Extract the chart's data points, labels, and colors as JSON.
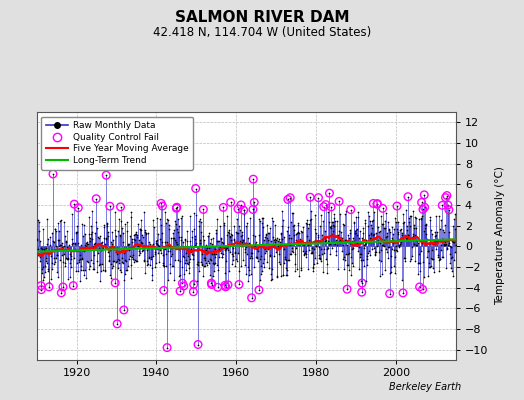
{
  "title": "SALMON RIVER DAM",
  "subtitle": "42.418 N, 114.704 W (United States)",
  "ylabel": "Temperature Anomaly (°C)",
  "credit": "Berkeley Earth",
  "xlim": [
    1910,
    2015
  ],
  "ylim": [
    -11,
    13
  ],
  "yticks": [
    -10,
    -8,
    -6,
    -4,
    -2,
    0,
    2,
    4,
    6,
    8,
    10,
    12
  ],
  "xticks": [
    1920,
    1940,
    1960,
    1980,
    2000
  ],
  "start_year": 1910,
  "end_year": 2014,
  "seed": 42,
  "bg_color": "#e0e0e0",
  "plot_bg_color": "#ffffff",
  "raw_line_color": "#3333cc",
  "raw_dot_color": "#000000",
  "qc_color": "#ff00ff",
  "moving_avg_color": "#ff0000",
  "trend_color": "#00bb00",
  "legend_labels": [
    "Raw Monthly Data",
    "Quality Control Fail",
    "Five Year Moving Average",
    "Long-Term Trend"
  ]
}
